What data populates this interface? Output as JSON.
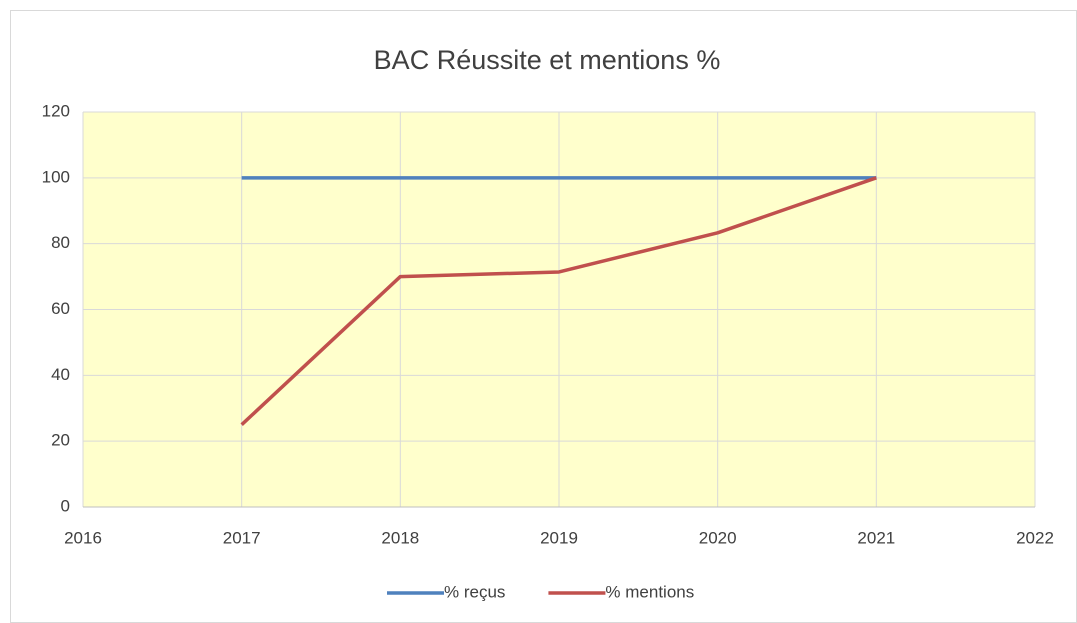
{
  "chart_data": {
    "type": "line",
    "title": "BAC Réussite et mentions %",
    "x": [
      2017,
      2018,
      2019,
      2020,
      2021
    ],
    "series": [
      {
        "name": "% reçus",
        "color": "#4f81bd",
        "values": [
          100,
          100,
          100,
          100,
          100
        ]
      },
      {
        "name": "% mentions",
        "color": "#c0504d",
        "values": [
          25,
          70,
          71.4,
          83.3,
          100
        ]
      }
    ],
    "xlim": [
      2016,
      2022
    ],
    "xticks": [
      2016,
      2017,
      2018,
      2019,
      2020,
      2021,
      2022
    ],
    "ylim": [
      0,
      120
    ],
    "yticks": [
      0,
      20,
      40,
      60,
      80,
      100,
      120
    ],
    "grid": true,
    "legend": "bottom",
    "plot_background": "#ffffcc"
  }
}
